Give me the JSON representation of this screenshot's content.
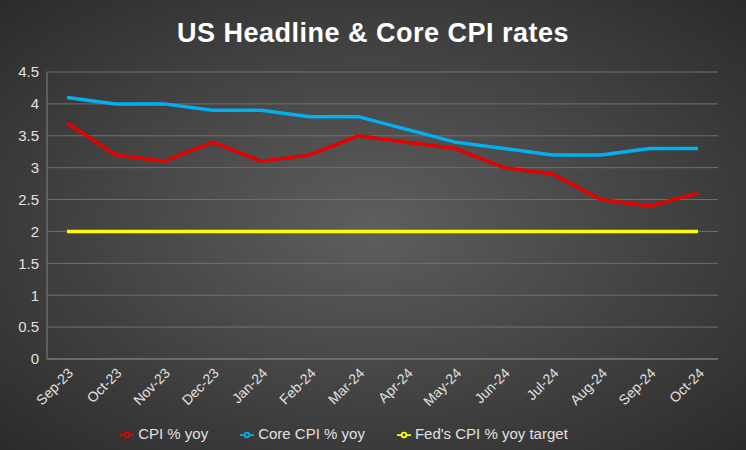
{
  "chart_data": {
    "type": "line",
    "title": "US Headline & Core CPI rates",
    "categories": [
      "Sep-23",
      "Oct-23",
      "Nov-23",
      "Dec-23",
      "Jan-24",
      "Feb-24",
      "Mar-24",
      "Apr-24",
      "May-24",
      "Jun-24",
      "Jul-24",
      "Aug-24",
      "Sep-24",
      "Oct-24"
    ],
    "series": [
      {
        "name": "CPI % yoy",
        "color": "#e60000",
        "values": [
          3.7,
          3.2,
          3.1,
          3.4,
          3.1,
          3.2,
          3.5,
          3.4,
          3.3,
          3.0,
          2.9,
          2.5,
          2.4,
          2.6
        ]
      },
      {
        "name": "Core CPI % yoy",
        "color": "#00b0f0",
        "values": [
          4.1,
          4.0,
          4.0,
          3.9,
          3.9,
          3.8,
          3.8,
          3.6,
          3.4,
          3.3,
          3.2,
          3.2,
          3.3,
          3.3
        ]
      },
      {
        "name": "Fed's CPI % yoy target",
        "color": "#ffff00",
        "values": [
          2,
          2,
          2,
          2,
          2,
          2,
          2,
          2,
          2,
          2,
          2,
          2,
          2,
          2
        ]
      }
    ],
    "ylim": [
      0,
      4.5
    ],
    "yticks": [
      0,
      0.5,
      1,
      1.5,
      2,
      2.5,
      3,
      3.5,
      4,
      4.5
    ],
    "grid": true,
    "legend": "bottom",
    "marker": "none"
  }
}
